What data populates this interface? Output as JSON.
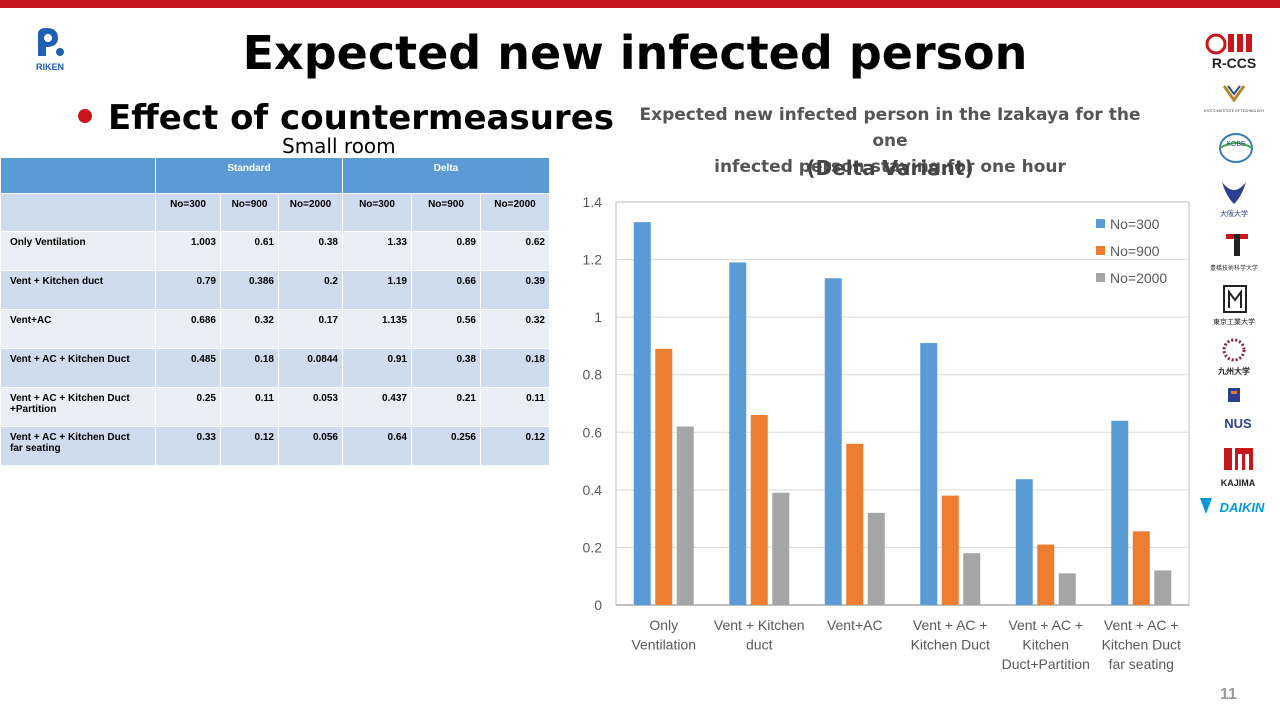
{
  "slide": {
    "title": "Expected new infected person",
    "bullet": "Effect of countermeasures",
    "subtitle": "Small room",
    "page_number": "11",
    "logo_riken": "RIKEN",
    "accent_color": "#c8161e"
  },
  "table": {
    "group_headers": [
      "Standard",
      "Delta"
    ],
    "column_headers": [
      "No=300",
      "No=900",
      "No=2000",
      "No=300",
      "No=900",
      "No=2000"
    ],
    "rows": [
      {
        "label": [
          "Only Ventilation"
        ],
        "values": [
          "1.003",
          "0.61",
          "0.38",
          "1.33",
          "0.89",
          "0.62"
        ]
      },
      {
        "label": [
          "Vent + Kitchen duct"
        ],
        "values": [
          "0.79",
          "0.386",
          "0.2",
          "1.19",
          "0.66",
          "0.39"
        ]
      },
      {
        "label": [
          "Vent+AC"
        ],
        "values": [
          "0.686",
          "0.32",
          "0.17",
          "1.135",
          "0.56",
          "0.32"
        ]
      },
      {
        "label": [
          "Vent + AC + Kitchen Duct"
        ],
        "values": [
          "0.485",
          "0.18",
          "0.0844",
          "0.91",
          "0.38",
          "0.18"
        ]
      },
      {
        "label": [
          "Vent + AC + Kitchen Duct",
          "+Partition"
        ],
        "values": [
          "0.25",
          "0.11",
          "0.053",
          "0.437",
          "0.21",
          "0.11"
        ]
      },
      {
        "label": [
          "Vent + AC + Kitchen Duct",
          " far seating"
        ],
        "values": [
          "0.33",
          "0.12",
          "0.056",
          "0.64",
          "0.256",
          "0.12"
        ]
      }
    ]
  },
  "chart_data": {
    "type": "bar",
    "title": "Expected new infected person in the Izakaya for the one infected person staying for one hour",
    "title_lines": [
      "Expected new infected person in the Izakaya for the one",
      "infected person staying for one hour"
    ],
    "subtitle": "(Delta Variant)",
    "categories": [
      [
        "Only",
        "Ventilation"
      ],
      [
        "Vent + Kitchen",
        "duct"
      ],
      [
        "Vent+AC"
      ],
      [
        "Vent + AC +",
        "Kitchen Duct"
      ],
      [
        "Vent + AC +",
        "Kitchen",
        "Duct+Partition"
      ],
      [
        "Vent + AC +",
        "Kitchen Duct",
        "far seating"
      ]
    ],
    "series": [
      {
        "name": "No=300",
        "color": "#5b9bd5",
        "values": [
          1.33,
          1.19,
          1.135,
          0.91,
          0.437,
          0.64
        ]
      },
      {
        "name": "No=900",
        "color": "#ed7d31",
        "values": [
          0.89,
          0.66,
          0.56,
          0.38,
          0.21,
          0.256
        ]
      },
      {
        "name": "No=2000",
        "color": "#a5a5a5",
        "values": [
          0.62,
          0.39,
          0.32,
          0.18,
          0.11,
          0.12
        ]
      }
    ],
    "ylim": [
      0,
      1.4
    ],
    "yticks": [
      "0",
      "0.2",
      "0.4",
      "0.6",
      "0.8",
      "1",
      "1.2",
      "1.4"
    ],
    "grid": true,
    "legend": "top-right"
  },
  "sidebar_logos": [
    "R-CCS",
    "KYOTO INSTITUTE OF TECHNOLOGY",
    "KOBE",
    "大阪大学",
    "豊橋技術科学大学",
    "東京工業大学",
    "九州大学",
    "NUS",
    "KAJIMA",
    "DAIKIN"
  ]
}
